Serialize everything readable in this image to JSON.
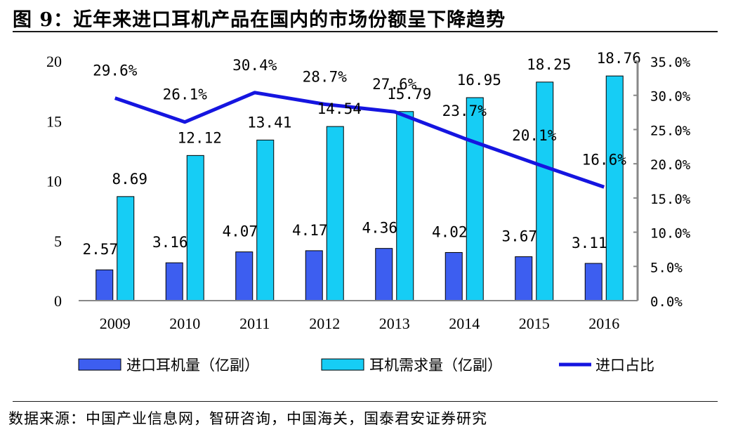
{
  "figure": {
    "title": "图 9：近年来进口耳机产品在国内的市场份额呈下降趋势",
    "source": "数据来源：中国产业信息网，智研咨询，中国海关，国泰君安证券研究"
  },
  "chart_data": {
    "type": "bar",
    "categories": [
      "2009",
      "2010",
      "2011",
      "2012",
      "2013",
      "2014",
      "2015",
      "2016"
    ],
    "series": [
      {
        "name": "进口耳机量（亿副）",
        "type": "bar",
        "axis": "left",
        "color": "#3d5ef0",
        "values": [
          2.57,
          3.16,
          4.07,
          4.17,
          4.36,
          4.02,
          3.67,
          3.11
        ],
        "labels": [
          "2.57",
          "3.16",
          "4.07",
          "4.17",
          "4.36",
          "4.02",
          "3.67",
          "3.11"
        ]
      },
      {
        "name": "耳机需求量（亿副）",
        "type": "bar",
        "axis": "left",
        "color": "#16cdf5",
        "values": [
          8.69,
          12.12,
          13.41,
          14.54,
          15.79,
          16.95,
          18.25,
          18.76
        ],
        "labels": [
          "8.69",
          "12.12",
          "13.41",
          "14.54",
          "15.79",
          "16.95",
          "18.25",
          "18.76"
        ]
      },
      {
        "name": "进口占比",
        "type": "line",
        "axis": "right",
        "color": "#1515e0",
        "values": [
          29.6,
          26.1,
          30.4,
          28.7,
          27.6,
          23.7,
          20.1,
          16.6
        ],
        "labels": [
          "29.6%",
          "26.1%",
          "30.4%",
          "28.7%",
          "27.6%",
          "23.7%",
          "20.1%",
          "16.6%"
        ]
      }
    ],
    "y_left": {
      "min": 0,
      "max": 20,
      "ticks": [
        "0",
        "5",
        "10",
        "15",
        "20"
      ]
    },
    "y_right": {
      "min": 0,
      "max": 35,
      "ticks": [
        "0.0%",
        "5.0%",
        "10.0%",
        "15.0%",
        "20.0%",
        "25.0%",
        "30.0%",
        "35.0%"
      ]
    },
    "grid": false,
    "legend_position": "bottom"
  }
}
